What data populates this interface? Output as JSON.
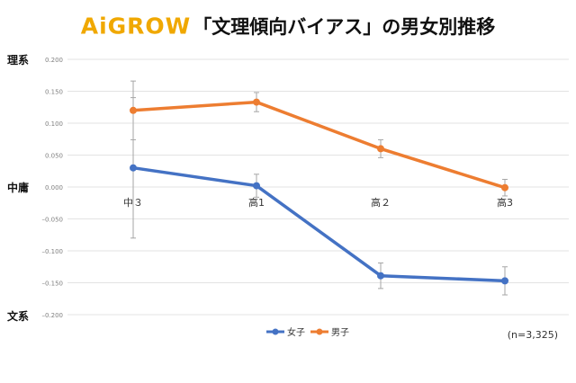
{
  "header": {
    "brand_a": "A",
    "brand_i": "i",
    "brand_rest": "GROW",
    "title": "「文理傾向バイアス」の男女別推移"
  },
  "side_labels": {
    "top": "理系",
    "middle": "中庸",
    "bottom": "文系"
  },
  "note": "(n=3,325)",
  "colors": {
    "female": "#4472c4",
    "male": "#ed7d31",
    "errorbar": "#a6a6a6",
    "grid": "#e3e3e3",
    "brand": "#f0a800"
  },
  "chart_data": {
    "type": "line",
    "title": "「文理傾向バイアス」の男女別推移",
    "xlabel": "",
    "ylabel": "",
    "categories": [
      "中３",
      "高1",
      "高２",
      "高3"
    ],
    "ylim": [
      -0.2,
      0.2
    ],
    "yticks": [
      0.2,
      0.15,
      0.1,
      0.05,
      0.0,
      -0.05,
      -0.1,
      -0.15,
      -0.2
    ],
    "ytick_labels": [
      "0.200",
      "0.150",
      "0.100",
      "0.050",
      "0.000",
      "–0.050",
      "–0.100",
      "–0.150",
      "–0.200"
    ],
    "grid": true,
    "legend_position": "bottom",
    "series": [
      {
        "name": "女子",
        "values": [
          0.03,
          0.002,
          -0.139,
          -0.147
        ],
        "errors": [
          0.11,
          0.018,
          0.02,
          0.022
        ]
      },
      {
        "name": "男子",
        "values": [
          0.12,
          0.133,
          0.06,
          -0.001
        ],
        "errors": [
          0.046,
          0.015,
          0.014,
          0.013
        ]
      }
    ]
  }
}
